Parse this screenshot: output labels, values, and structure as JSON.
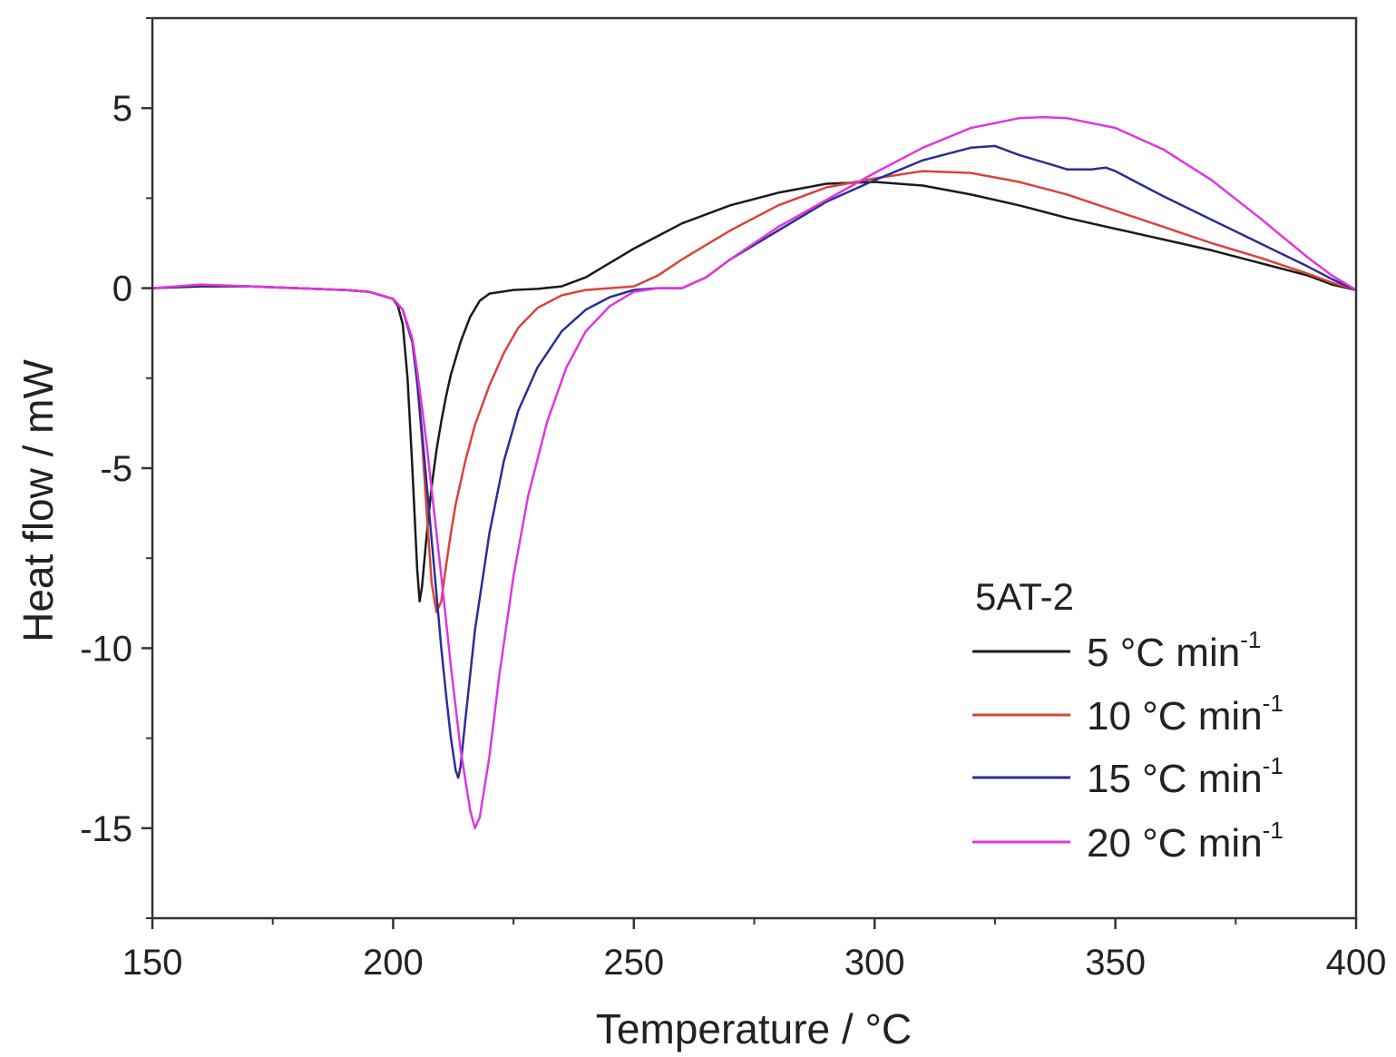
{
  "chart_data": {
    "type": "line",
    "title": "",
    "xlabel": "Temperature / °C",
    "ylabel": "Heat flow / mW",
    "xlim": [
      150,
      400
    ],
    "ylim": [
      -17.5,
      7.5
    ],
    "xticks": [
      150,
      200,
      250,
      300,
      350,
      400
    ],
    "xtick_labels": [
      "150",
      "200",
      "250",
      "300",
      "350",
      "400"
    ],
    "yticks": [
      5,
      0,
      -5,
      -10,
      -15
    ],
    "ytick_labels": [
      "5",
      "0",
      "-5",
      "-10",
      "-15"
    ],
    "grid": false,
    "legend": {
      "title": "5AT-2",
      "position": "bottom-right"
    },
    "series": [
      {
        "name": "5 °C min-1",
        "label_main": "5 °C min",
        "label_sup": "-1",
        "color": "#1a1a1a",
        "x": [
          150,
          160,
          170,
          180,
          190,
          195,
          200,
          201,
          202,
          203,
          204,
          205,
          205.5,
          206,
          207,
          208,
          209,
          210,
          211,
          212,
          214,
          216,
          218,
          220,
          225,
          230,
          235,
          240,
          245,
          250,
          255,
          260,
          270,
          280,
          290,
          300,
          310,
          320,
          330,
          340,
          350,
          360,
          370,
          380,
          390,
          395,
          400
        ],
        "y": [
          0.0,
          0.05,
          0.05,
          0.0,
          -0.05,
          -0.1,
          -0.3,
          -0.5,
          -1.0,
          -2.5,
          -5.0,
          -7.8,
          -8.7,
          -8.3,
          -6.8,
          -5.5,
          -4.5,
          -3.7,
          -3.0,
          -2.4,
          -1.5,
          -0.8,
          -0.35,
          -0.15,
          -0.05,
          -0.02,
          0.05,
          0.3,
          0.7,
          1.1,
          1.45,
          1.8,
          2.3,
          2.65,
          2.9,
          2.95,
          2.85,
          2.6,
          2.3,
          1.95,
          1.65,
          1.35,
          1.05,
          0.7,
          0.35,
          0.1,
          -0.05
        ]
      },
      {
        "name": "10 °C min-1",
        "label_main": "10 °C min",
        "label_sup": "-1",
        "color": "#d9443a",
        "x": [
          150,
          160,
          170,
          180,
          190,
          195,
          200,
          202,
          204,
          205,
          206,
          207,
          208,
          209,
          210,
          211,
          212,
          213,
          215,
          217,
          220,
          223,
          226,
          230,
          235,
          240,
          245,
          250,
          255,
          260,
          270,
          280,
          290,
          300,
          310,
          320,
          330,
          340,
          350,
          360,
          370,
          380,
          390,
          395,
          400
        ],
        "y": [
          0.0,
          0.08,
          0.05,
          0.0,
          -0.05,
          -0.1,
          -0.3,
          -0.6,
          -1.5,
          -2.6,
          -4.2,
          -6.3,
          -8.2,
          -9.0,
          -8.7,
          -7.7,
          -6.8,
          -6.0,
          -4.8,
          -3.8,
          -2.7,
          -1.8,
          -1.1,
          -0.55,
          -0.2,
          -0.05,
          0.0,
          0.05,
          0.35,
          0.8,
          1.6,
          2.3,
          2.8,
          3.05,
          3.25,
          3.2,
          2.95,
          2.6,
          2.15,
          1.7,
          1.25,
          0.85,
          0.4,
          0.15,
          -0.05
        ]
      },
      {
        "name": "15 °C min-1",
        "label_main": "15 °C min",
        "label_sup": "-1",
        "color": "#2a2e96",
        "x": [
          150,
          160,
          170,
          180,
          190,
          195,
          200,
          202,
          204,
          205,
          206,
          207,
          208,
          209,
          210,
          211,
          212,
          213,
          213.5,
          214,
          215,
          217,
          220,
          223,
          226,
          230,
          235,
          240,
          245,
          250,
          255,
          260,
          265,
          270,
          280,
          290,
          300,
          310,
          320,
          325,
          330,
          335,
          340,
          345,
          348,
          350,
          355,
          360,
          370,
          380,
          390,
          395,
          400
        ],
        "y": [
          0.0,
          0.08,
          0.05,
          0.0,
          -0.05,
          -0.1,
          -0.3,
          -0.6,
          -1.5,
          -2.6,
          -4.0,
          -5.5,
          -7.0,
          -8.5,
          -10.0,
          -11.3,
          -12.5,
          -13.4,
          -13.6,
          -13.3,
          -12.0,
          -9.5,
          -6.8,
          -4.8,
          -3.4,
          -2.2,
          -1.2,
          -0.6,
          -0.25,
          -0.05,
          0.0,
          0.0,
          0.3,
          0.8,
          1.6,
          2.4,
          3.0,
          3.55,
          3.9,
          3.95,
          3.7,
          3.5,
          3.3,
          3.3,
          3.35,
          3.25,
          2.9,
          2.55,
          1.9,
          1.25,
          0.6,
          0.25,
          -0.05
        ]
      },
      {
        "name": "20 °C min-1",
        "label_main": "20 °C min",
        "label_sup": "-1",
        "color": "#e035e0",
        "x": [
          150,
          160,
          170,
          180,
          190,
          195,
          200,
          202,
          204,
          205,
          206,
          207,
          208,
          210,
          212,
          214,
          216,
          217,
          218,
          220,
          222,
          225,
          228,
          232,
          236,
          240,
          245,
          250,
          255,
          260,
          265,
          270,
          280,
          290,
          300,
          310,
          320,
          330,
          335,
          340,
          350,
          360,
          370,
          380,
          390,
          395,
          400
        ],
        "y": [
          0.0,
          0.1,
          0.05,
          0.0,
          -0.05,
          -0.1,
          -0.3,
          -0.6,
          -1.4,
          -2.3,
          -3.3,
          -4.4,
          -5.6,
          -8.0,
          -10.5,
          -12.8,
          -14.5,
          -15.0,
          -14.7,
          -13.0,
          -10.8,
          -8.0,
          -5.8,
          -3.7,
          -2.2,
          -1.2,
          -0.5,
          -0.1,
          0.0,
          0.0,
          0.3,
          0.8,
          1.7,
          2.45,
          3.2,
          3.9,
          4.45,
          4.72,
          4.75,
          4.72,
          4.45,
          3.85,
          3.0,
          1.95,
          0.85,
          0.35,
          -0.05
        ]
      }
    ]
  }
}
